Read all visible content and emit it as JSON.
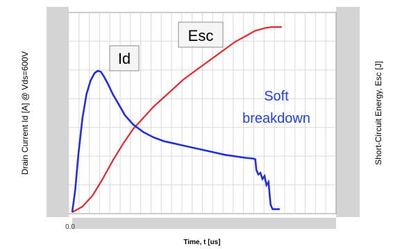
{
  "chart_data": {
    "type": "line",
    "title": "",
    "xlabel": "Time, t [us]",
    "ylabel_left": "Drain Current Id [A] @ Vds=600V",
    "ylabel_right": "Short-Circuit Energy, Esc [J]",
    "x_tick_labels": [
      "0.0"
    ],
    "grid": true,
    "colors": {
      "Id": "#1f2fe0",
      "Esc": "#e8262a",
      "annotation": "#1f3fe6"
    },
    "series": [
      {
        "name": "Id",
        "axis": "left",
        "x": [
          0,
          0.15,
          0.3,
          0.5,
          0.7,
          0.9,
          1.1,
          1.25,
          1.4,
          1.55,
          1.75,
          2.0,
          2.3,
          2.6,
          3.0,
          3.5,
          4.0,
          4.5,
          5.0,
          5.5,
          6.0,
          6.5,
          7.0,
          7.5,
          8.0,
          8.5,
          8.9,
          9.0,
          9.05,
          9.15,
          9.25,
          9.35,
          9.45,
          9.55,
          9.65,
          9.75,
          9.85,
          9.95,
          10.2
        ],
        "values": [
          0,
          0.15,
          0.38,
          0.62,
          0.78,
          0.87,
          0.92,
          0.935,
          0.93,
          0.9,
          0.85,
          0.78,
          0.71,
          0.64,
          0.58,
          0.53,
          0.495,
          0.47,
          0.455,
          0.44,
          0.425,
          0.41,
          0.395,
          0.38,
          0.37,
          0.36,
          0.355,
          0.35,
          0.28,
          0.25,
          0.26,
          0.22,
          0.24,
          0.18,
          0.2,
          0.05,
          0.02,
          0.02,
          0.02
        ]
      },
      {
        "name": "Esc",
        "axis": "right",
        "x": [
          0,
          0.5,
          1.0,
          1.5,
          2.0,
          2.5,
          3.0,
          3.5,
          4.0,
          4.5,
          5.0,
          5.5,
          6.0,
          6.5,
          7.0,
          7.5,
          8.0,
          8.5,
          9.0,
          9.5,
          9.8,
          10.0,
          10.3
        ],
        "values": [
          0,
          0.03,
          0.09,
          0.18,
          0.28,
          0.37,
          0.45,
          0.51,
          0.57,
          0.62,
          0.67,
          0.72,
          0.76,
          0.8,
          0.84,
          0.88,
          0.92,
          0.95,
          0.98,
          0.995,
          1.0,
          1.0,
          1.0
        ]
      }
    ],
    "annotations": [
      {
        "id": "id-label",
        "text": "Id"
      },
      {
        "id": "esc-label",
        "text": "Esc"
      },
      {
        "id": "soft-breakdown",
        "lines": [
          "Soft",
          "breakdown"
        ]
      }
    ]
  }
}
